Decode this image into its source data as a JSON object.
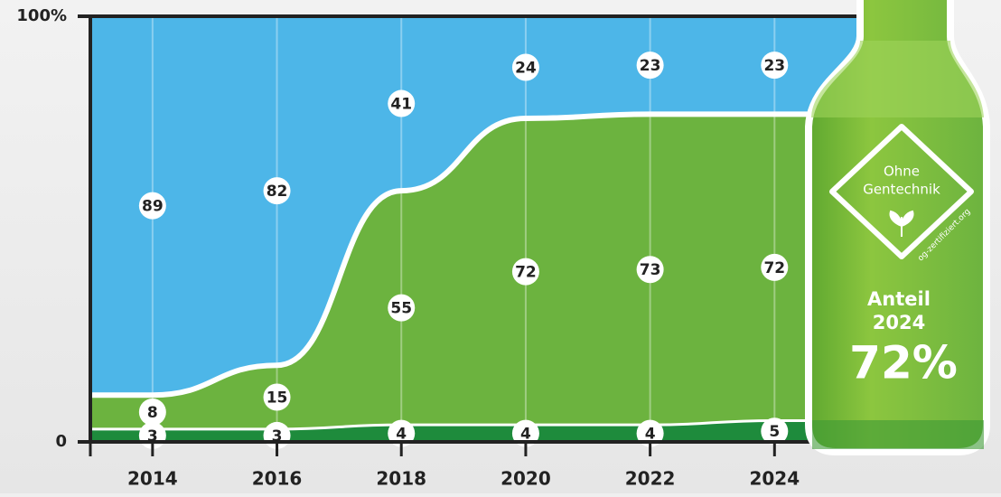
{
  "chart_data": {
    "type": "stacked-area",
    "x": [
      2014,
      2016,
      2018,
      2020,
      2022,
      2024
    ],
    "xlim": [
      2013,
      2026
    ],
    "xticks": [
      2014,
      2016,
      2018,
      2020,
      2022,
      2024
    ],
    "ylim": [
      0,
      100
    ],
    "yticks": [
      0,
      {
        "value": 100,
        "label": "100%"
      }
    ],
    "series": [
      {
        "color": "#1e8b3c",
        "values": [
          3,
          3,
          4,
          4,
          4,
          5
        ]
      },
      {
        "color": "#6cb33f",
        "values": [
          8,
          15,
          55,
          72,
          73,
          72
        ]
      },
      {
        "color": "#4db6e8",
        "values": [
          89,
          82,
          41,
          24,
          23,
          23
        ]
      }
    ],
    "annotations": {
      "logo_line1": "Ohne",
      "logo_line2": "Gentechnik",
      "logo_url": "og-zertifiziert.org",
      "share_label": "Anteil",
      "share_year": "2024",
      "share_value": "72%"
    }
  }
}
